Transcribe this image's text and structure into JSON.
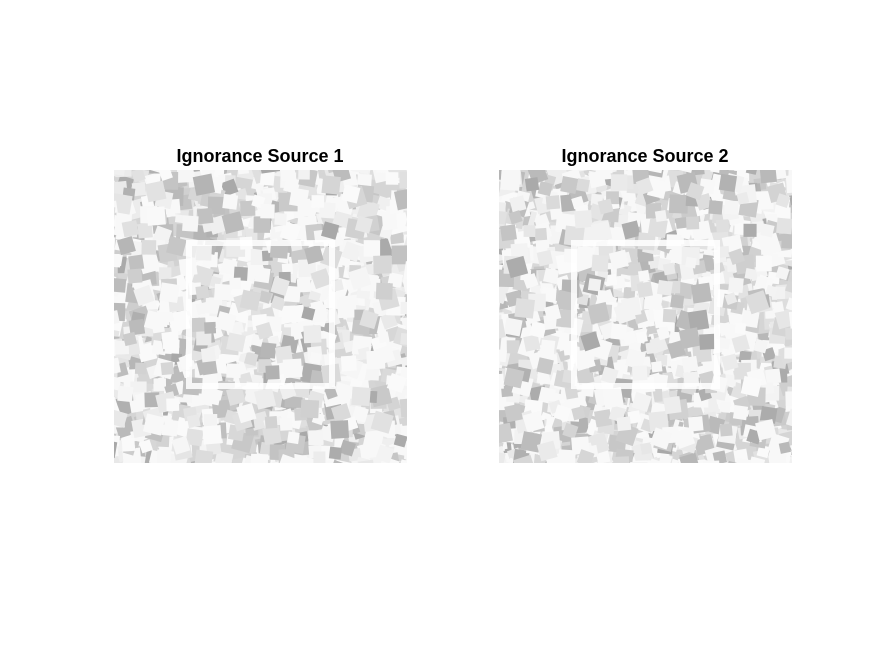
{
  "figure": {
    "panels": [
      {
        "title": "Ignorance Source 1",
        "image_icon": "grayscale-noise-square-image"
      },
      {
        "title": "Ignorance Source 2",
        "image_icon": "grayscale-noise-square-image"
      }
    ]
  },
  "colors": {
    "background": "#ffffff",
    "title_text": "#000000",
    "patch_light": "#fafafa",
    "patch_dark": "#a8a8a8",
    "frame_line": "#ffffff"
  }
}
